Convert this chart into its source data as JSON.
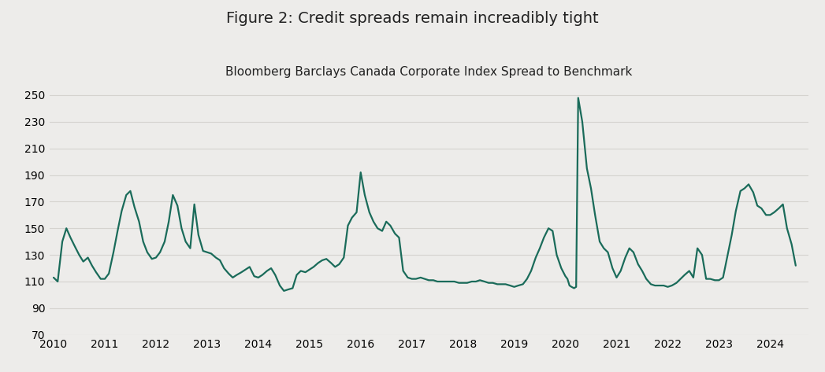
{
  "title": "Figure 2: Credit spreads remain increadibly tight",
  "subtitle": "Bloomberg Barclays Canada Corporate Index Spread to Benchmark",
  "title_fontsize": 14,
  "subtitle_fontsize": 11,
  "line_color": "#1a6b5a",
  "line_width": 1.6,
  "background_color": "#edecea",
  "yticks": [
    70,
    90,
    110,
    130,
    150,
    170,
    190,
    210,
    230,
    250
  ],
  "ylim": [
    70,
    260
  ],
  "xlim_start": 2009.92,
  "xlim_end": 2024.75,
  "grid_color": "#d5d3cf",
  "x_data": [
    2010.0,
    2010.08,
    2010.17,
    2010.25,
    2010.33,
    2010.42,
    2010.5,
    2010.58,
    2010.67,
    2010.75,
    2010.83,
    2010.92,
    2011.0,
    2011.08,
    2011.17,
    2011.25,
    2011.33,
    2011.42,
    2011.5,
    2011.58,
    2011.67,
    2011.75,
    2011.83,
    2011.92,
    2012.0,
    2012.08,
    2012.17,
    2012.25,
    2012.33,
    2012.42,
    2012.5,
    2012.58,
    2012.67,
    2012.75,
    2012.83,
    2012.92,
    2013.0,
    2013.08,
    2013.17,
    2013.25,
    2013.33,
    2013.42,
    2013.5,
    2013.58,
    2013.67,
    2013.75,
    2013.83,
    2013.92,
    2014.0,
    2014.08,
    2014.17,
    2014.25,
    2014.33,
    2014.42,
    2014.5,
    2014.58,
    2014.67,
    2014.75,
    2014.83,
    2014.92,
    2015.0,
    2015.08,
    2015.17,
    2015.25,
    2015.33,
    2015.42,
    2015.5,
    2015.58,
    2015.67,
    2015.75,
    2015.83,
    2015.92,
    2016.0,
    2016.08,
    2016.17,
    2016.25,
    2016.33,
    2016.42,
    2016.5,
    2016.58,
    2016.67,
    2016.75,
    2016.83,
    2016.92,
    2017.0,
    2017.08,
    2017.17,
    2017.25,
    2017.33,
    2017.42,
    2017.5,
    2017.58,
    2017.67,
    2017.75,
    2017.83,
    2017.92,
    2018.0,
    2018.08,
    2018.17,
    2018.25,
    2018.33,
    2018.42,
    2018.5,
    2018.58,
    2018.67,
    2018.75,
    2018.83,
    2018.92,
    2019.0,
    2019.08,
    2019.17,
    2019.25,
    2019.33,
    2019.42,
    2019.5,
    2019.58,
    2019.67,
    2019.75,
    2019.83,
    2019.92,
    2020.0,
    2020.04,
    2020.08,
    2020.12,
    2020.17,
    2020.21,
    2020.25,
    2020.33,
    2020.42,
    2020.5,
    2020.58,
    2020.67,
    2020.75,
    2020.83,
    2020.92,
    2021.0,
    2021.08,
    2021.17,
    2021.25,
    2021.33,
    2021.42,
    2021.5,
    2021.58,
    2021.67,
    2021.75,
    2021.83,
    2021.92,
    2022.0,
    2022.08,
    2022.17,
    2022.25,
    2022.33,
    2022.42,
    2022.5,
    2022.58,
    2022.67,
    2022.75,
    2022.83,
    2022.92,
    2023.0,
    2023.08,
    2023.17,
    2023.25,
    2023.33,
    2023.42,
    2023.5,
    2023.58,
    2023.67,
    2023.75,
    2023.83,
    2023.92,
    2024.0,
    2024.08,
    2024.17,
    2024.25,
    2024.33,
    2024.42,
    2024.5
  ],
  "y_data": [
    113,
    110,
    140,
    150,
    143,
    136,
    130,
    125,
    128,
    122,
    117,
    112,
    112,
    116,
    132,
    148,
    163,
    175,
    178,
    166,
    155,
    140,
    132,
    127,
    128,
    132,
    140,
    155,
    175,
    167,
    150,
    140,
    135,
    168,
    145,
    133,
    132,
    131,
    128,
    126,
    120,
    116,
    113,
    115,
    117,
    119,
    121,
    114,
    113,
    115,
    118,
    120,
    115,
    107,
    103,
    104,
    105,
    115,
    118,
    117,
    119,
    121,
    124,
    126,
    127,
    124,
    121,
    123,
    128,
    152,
    158,
    162,
    192,
    175,
    162,
    155,
    150,
    148,
    155,
    152,
    146,
    143,
    118,
    113,
    112,
    112,
    113,
    112,
    111,
    111,
    110,
    110,
    110,
    110,
    110,
    109,
    109,
    109,
    110,
    110,
    111,
    110,
    109,
    109,
    108,
    108,
    108,
    107,
    106,
    107,
    108,
    112,
    118,
    128,
    135,
    143,
    150,
    148,
    130,
    120,
    114,
    112,
    107,
    106,
    105,
    106,
    248,
    230,
    195,
    180,
    160,
    140,
    135,
    132,
    120,
    113,
    118,
    128,
    135,
    132,
    123,
    118,
    112,
    108,
    107,
    107,
    107,
    106,
    107,
    109,
    112,
    115,
    118,
    113,
    135,
    130,
    112,
    112,
    111,
    111,
    113,
    130,
    145,
    163,
    178,
    180,
    183,
    177,
    167,
    165,
    160,
    160,
    162,
    165,
    168,
    150,
    138,
    122
  ],
  "xtick_labels": [
    "2010",
    "2011",
    "2012",
    "2013",
    "2014",
    "2015",
    "2016",
    "2017",
    "2018",
    "2019",
    "2020",
    "2021",
    "2022",
    "2023",
    "2024"
  ],
  "xtick_values": [
    2010,
    2011,
    2012,
    2013,
    2014,
    2015,
    2016,
    2017,
    2018,
    2019,
    2020,
    2021,
    2022,
    2023,
    2024
  ]
}
